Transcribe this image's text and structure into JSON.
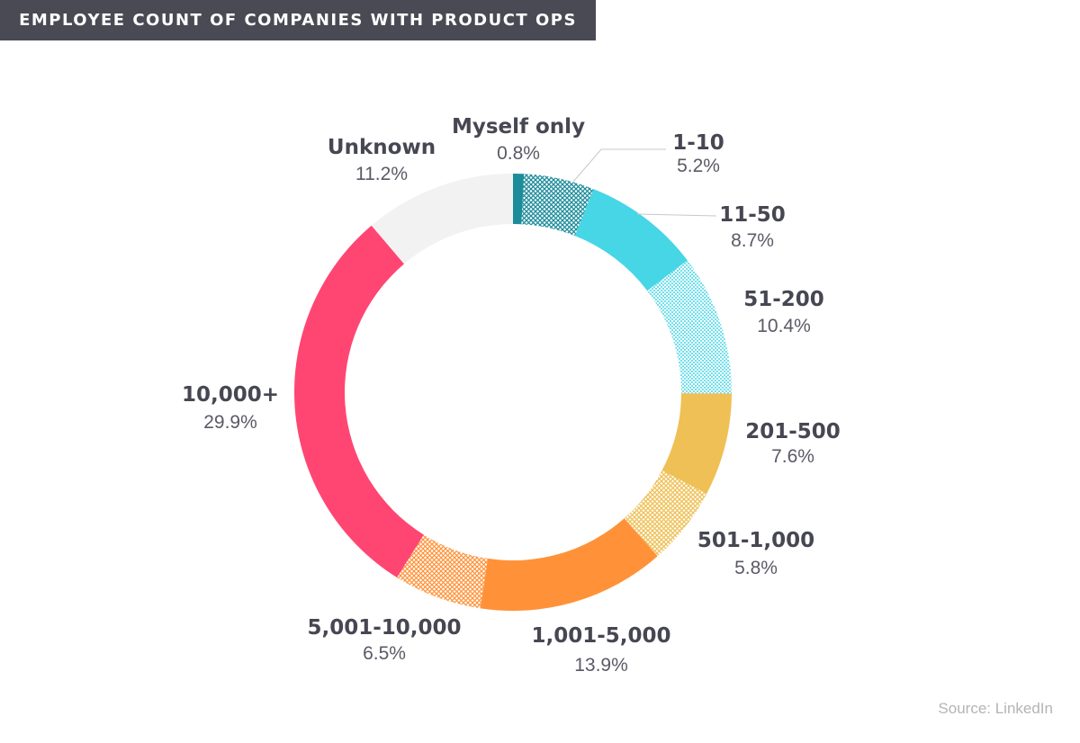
{
  "header": {
    "title": "EMPLOYEE COUNT OF COMPANIES WITH PRODUCT OPS"
  },
  "footer": {
    "source": "Source: LinkedIn"
  },
  "chart_data": {
    "type": "pie",
    "style": "donut",
    "title": "EMPLOYEE COUNT OF COMPANIES WITH PRODUCT OPS",
    "unit": "%",
    "slices": [
      {
        "label": "Myself only",
        "value_label": "0.8%",
        "value": 0.8,
        "color": "#1c8c9a",
        "fill": "solid"
      },
      {
        "label": "1-10",
        "value_label": "5.2%",
        "value": 5.2,
        "color": "#1c8c9a",
        "fill": "hatched"
      },
      {
        "label": "11-50",
        "value_label": "8.7%",
        "value": 8.7,
        "color": "#46d6e6",
        "fill": "solid"
      },
      {
        "label": "51-200",
        "value_label": "10.4%",
        "value": 10.4,
        "color": "#46d6e6",
        "fill": "hatched"
      },
      {
        "label": "201-500",
        "value_label": "7.6%",
        "value": 7.6,
        "color": "#efc055",
        "fill": "solid"
      },
      {
        "label": "501-1,000",
        "value_label": "5.8%",
        "value": 5.8,
        "color": "#efc055",
        "fill": "hatched"
      },
      {
        "label": "1,001-5,000",
        "value_label": "13.9%",
        "value": 13.9,
        "color": "#ff9238",
        "fill": "solid"
      },
      {
        "label": "5,001-10,000",
        "value_label": "6.5%",
        "value": 6.5,
        "color": "#ff9238",
        "fill": "hatched"
      },
      {
        "label": "10,000+",
        "value_label": "29.9%",
        "value": 29.9,
        "color": "#ff4672",
        "fill": "solid"
      },
      {
        "label": "Unknown",
        "value_label": "11.2%",
        "value": 11.2,
        "color": "#f2f2f2",
        "fill": "solid"
      }
    ]
  }
}
